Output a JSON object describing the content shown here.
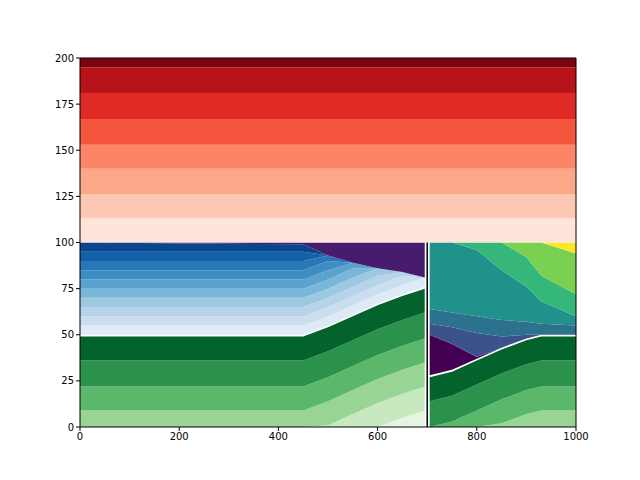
{
  "chart_data": {
    "type": "contour",
    "xlim": [
      0,
      1000
    ],
    "ylim": [
      0,
      200
    ],
    "xticks": [
      0,
      200,
      400,
      600,
      800,
      1000
    ],
    "yticks": [
      0,
      25,
      50,
      75,
      100,
      125,
      150,
      175,
      200
    ],
    "fault": {
      "x": 700,
      "y": [
        0,
        100
      ],
      "color": "#000000"
    },
    "regions": [
      {
        "color": "#e5f5e0",
        "x": [
          0,
          450,
          500,
          550,
          600,
          650,
          695
        ],
        "low": [
          0,
          0,
          0,
          0,
          0,
          0,
          0
        ],
        "high": [
          0,
          0,
          0,
          0,
          0,
          5,
          9
        ]
      },
      {
        "color": "#c7e9c0",
        "x": [
          0,
          450,
          500,
          550,
          600,
          650,
          695
        ],
        "low": [
          0,
          0,
          0,
          0,
          0,
          5,
          9
        ],
        "high": [
          0,
          0,
          1,
          7,
          13,
          18,
          22
        ]
      },
      {
        "color": "#98d594",
        "x": [
          0,
          450,
          500,
          550,
          600,
          650,
          695
        ],
        "low": [
          0,
          0,
          1,
          7,
          13,
          18,
          22
        ],
        "high": [
          9,
          9,
          14,
          20,
          26,
          31,
          35
        ]
      },
      {
        "color": "#5bb86a",
        "x": [
          0,
          450,
          500,
          550,
          600,
          650,
          695
        ],
        "low": [
          9,
          9,
          14,
          20,
          26,
          31,
          35
        ],
        "high": [
          22,
          22,
          27,
          33,
          39,
          44,
          48
        ]
      },
      {
        "color": "#2a924a",
        "x": [
          0,
          450,
          500,
          550,
          600,
          650,
          695
        ],
        "low": [
          22,
          22,
          27,
          33,
          39,
          44,
          48
        ],
        "high": [
          36,
          36,
          41,
          47,
          53,
          58,
          62
        ]
      },
      {
        "color": "#04632d",
        "x": [
          0,
          450,
          500,
          550,
          600,
          650,
          695
        ],
        "low": [
          36,
          36,
          41,
          47,
          53,
          58,
          62
        ],
        "high": [
          49,
          49,
          54,
          60,
          66,
          71,
          75
        ]
      },
      {
        "color": "#deebf7",
        "x": [
          0,
          450,
          500,
          550,
          600,
          650,
          695
        ],
        "low": [
          50,
          50,
          55,
          61,
          67,
          72,
          76
        ],
        "high": [
          55,
          55,
          60,
          66,
          72,
          77,
          81
        ]
      },
      {
        "color": "#cadef0",
        "x": [
          0,
          450,
          500,
          550,
          600,
          650,
          695
        ],
        "low": [
          55,
          55,
          60,
          66,
          72,
          77,
          81
        ],
        "high": [
          60,
          60,
          65,
          71,
          77,
          82,
          81
        ]
      },
      {
        "color": "#b5d4e9",
        "x": [
          0,
          450,
          500,
          550,
          600,
          650,
          695
        ],
        "low": [
          60,
          60,
          65,
          71,
          77,
          82,
          81
        ],
        "high": [
          65,
          65,
          70,
          76,
          82,
          84,
          81
        ]
      },
      {
        "color": "#9dc9e0",
        "x": [
          0,
          450,
          500,
          550,
          600,
          650,
          695
        ],
        "low": [
          65,
          65,
          70,
          76,
          82,
          84,
          81
        ],
        "high": [
          70,
          70,
          75,
          81,
          86,
          84,
          81
        ]
      },
      {
        "color": "#7ab6d9",
        "x": [
          0,
          450,
          500,
          550,
          600,
          650,
          695
        ],
        "low": [
          70,
          70,
          75,
          81,
          86,
          84,
          81
        ],
        "high": [
          75,
          75,
          80,
          86,
          86,
          84,
          81
        ]
      },
      {
        "color": "#5ba3cf",
        "x": [
          0,
          450,
          500,
          550,
          600,
          650,
          695
        ],
        "low": [
          75,
          75,
          80,
          86,
          86,
          84,
          81
        ],
        "high": [
          80,
          80,
          85,
          89,
          86,
          84,
          81
        ]
      },
      {
        "color": "#3d8dc4",
        "x": [
          0,
          450,
          500,
          550,
          600,
          650,
          695
        ],
        "low": [
          80,
          80,
          85,
          89,
          86,
          84,
          81
        ],
        "high": [
          85,
          85,
          90,
          89,
          86,
          84,
          81
        ]
      },
      {
        "color": "#2878b8",
        "x": [
          0,
          450,
          500,
          550,
          600,
          650,
          695
        ],
        "low": [
          85,
          85,
          90,
          89,
          86,
          84,
          81
        ],
        "high": [
          90,
          90,
          93,
          89,
          86,
          84,
          81
        ]
      },
      {
        "color": "#1361a9",
        "x": [
          0,
          450,
          500,
          550,
          600,
          650,
          695
        ],
        "low": [
          90,
          90,
          93,
          89,
          86,
          84,
          81
        ],
        "high": [
          95,
          95,
          93,
          89,
          86,
          84,
          81
        ]
      },
      {
        "color": "#08468f",
        "x": [
          0,
          450,
          500,
          550,
          600,
          650,
          695
        ],
        "low": [
          95,
          95,
          93,
          89,
          86,
          84,
          81
        ],
        "high": [
          100,
          99,
          93,
          89,
          86,
          84,
          81
        ]
      },
      {
        "color": "#471b6e",
        "x": [
          0,
          450,
          500,
          550,
          600,
          650,
          695
        ],
        "low": [
          100,
          99,
          93,
          89,
          86,
          84,
          81
        ],
        "high": [
          100,
          100,
          100,
          100,
          100,
          100,
          100
        ]
      },
      {
        "color": "#98d594",
        "x": [
          705,
          750,
          800,
          850,
          900,
          930,
          1000
        ],
        "low": [
          0,
          0,
          0,
          0,
          0,
          0,
          0
        ],
        "high": [
          0,
          0,
          0,
          2,
          7,
          9,
          9
        ]
      },
      {
        "color": "#5bb86a",
        "x": [
          705,
          750,
          800,
          850,
          900,
          930,
          1000
        ],
        "low": [
          0,
          0,
          0,
          2,
          7,
          9,
          9
        ],
        "high": [
          0,
          3,
          9,
          15,
          20,
          22,
          22
        ]
      },
      {
        "color": "#2a924a",
        "x": [
          705,
          750,
          800,
          850,
          900,
          930,
          1000
        ],
        "low": [
          0,
          3,
          9,
          15,
          20,
          22,
          22
        ],
        "high": [
          14,
          17,
          23,
          29,
          34,
          36,
          36
        ]
      },
      {
        "color": "#04632d",
        "x": [
          705,
          750,
          800,
          850,
          900,
          930,
          1000
        ],
        "low": [
          14,
          17,
          23,
          29,
          34,
          36,
          36
        ],
        "high": [
          27,
          30,
          36,
          42,
          47,
          49,
          49
        ]
      },
      {
        "color": "#440154",
        "x": [
          705,
          750,
          800,
          850,
          900,
          930,
          1000
        ],
        "low": [
          28,
          31,
          37,
          43,
          48,
          50,
          50
        ],
        "high": [
          50,
          45,
          38,
          43,
          48,
          50,
          50
        ]
      },
      {
        "color": "#3b528b",
        "x": [
          705,
          750,
          800,
          850,
          900,
          930,
          1000
        ],
        "low": [
          50,
          45,
          38,
          43,
          48,
          50,
          50
        ],
        "high": [
          56,
          54,
          51,
          49,
          50,
          50,
          50
        ]
      },
      {
        "color": "#2c728e",
        "x": [
          705,
          750,
          800,
          850,
          900,
          930,
          1000
        ],
        "low": [
          56,
          54,
          51,
          49,
          50,
          50,
          50
        ],
        "high": [
          64,
          62,
          60,
          58,
          57,
          56,
          55
        ]
      },
      {
        "color": "#21918c",
        "x": [
          705,
          750,
          800,
          850,
          900,
          930,
          1000
        ],
        "low": [
          64,
          62,
          60,
          58,
          57,
          56,
          55
        ],
        "high": [
          100,
          100,
          96,
          85,
          76,
          68,
          60
        ]
      },
      {
        "color": "#35b779",
        "x": [
          705,
          750,
          800,
          850,
          900,
          930,
          1000
        ],
        "low": [
          100,
          100,
          96,
          85,
          76,
          68,
          60
        ],
        "high": [
          100,
          100,
          100,
          100,
          92,
          82,
          72
        ]
      },
      {
        "color": "#7ad151",
        "x": [
          705,
          750,
          800,
          850,
          900,
          930,
          1000
        ],
        "low": [
          100,
          100,
          100,
          100,
          92,
          82,
          72
        ],
        "high": [
          100,
          100,
          100,
          100,
          100,
          100,
          94
        ]
      },
      {
        "color": "#fde725",
        "x": [
          705,
          750,
          800,
          850,
          900,
          930,
          1000
        ],
        "low": [
          100,
          100,
          100,
          100,
          100,
          100,
          94
        ],
        "high": [
          100,
          100,
          100,
          100,
          100,
          100,
          100
        ]
      },
      {
        "color": "#fee5d9",
        "x": [
          0,
          1000
        ],
        "low": [
          100,
          100
        ],
        "high": [
          113,
          113
        ]
      },
      {
        "color": "#fdc9b4",
        "x": [
          0,
          1000
        ],
        "low": [
          113,
          113
        ],
        "high": [
          126,
          126
        ]
      },
      {
        "color": "#fca78a",
        "x": [
          0,
          1000
        ],
        "low": [
          126,
          126
        ],
        "high": [
          140,
          140
        ]
      },
      {
        "color": "#fc8565",
        "x": [
          0,
          1000
        ],
        "low": [
          140,
          140
        ],
        "high": [
          153,
          153
        ]
      },
      {
        "color": "#f5553c",
        "x": [
          0,
          1000
        ],
        "low": [
          153,
          153
        ],
        "high": [
          167,
          167
        ]
      },
      {
        "color": "#df2a26",
        "x": [
          0,
          1000
        ],
        "low": [
          167,
          167
        ],
        "high": [
          181,
          181
        ]
      },
      {
        "color": "#b71319",
        "x": [
          0,
          1000
        ],
        "low": [
          181,
          181
        ],
        "high": [
          195,
          195
        ]
      },
      {
        "color": "#7a0510",
        "x": [
          0,
          1000
        ],
        "low": [
          195,
          195
        ],
        "high": [
          200,
          200
        ]
      }
    ]
  }
}
